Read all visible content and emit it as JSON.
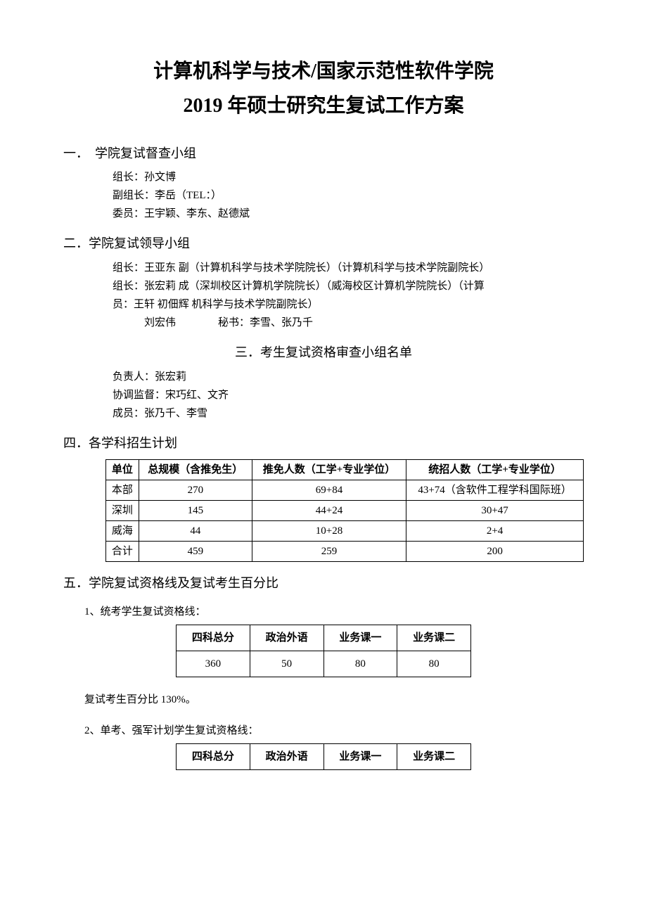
{
  "title_line1": "计算机科学与技术/国家示范性软件学院",
  "title_line2": "2019 年硕士研究生复试工作方案",
  "sec1": {
    "heading": "一．　学院复试督查小组",
    "l1": "组长：孙文博",
    "l2": "副组长：李岳（TEL：）",
    "l3": "委员：王宇颖、李东、赵德斌"
  },
  "sec2": {
    "heading": "二．学院复试领导小组",
    "l1": "组长：王亚东  副（计算机科学与技术学院院长）（计算机科学与技术学院副院长）",
    "l2": "组长：张宏莉  成（深圳校区计算机学院院长）（威海校区计算机学院院长）（计算",
    "l3": "员：王轩  初佃辉  机科学与技术学院副院长）",
    "l4": "　　　刘宏伟　　　　秘书：李雪、张乃千"
  },
  "sec3": {
    "heading": "三．考生复试资格审查小组名单",
    "l1": "负责人：张宏莉",
    "l2": "协调监督：宋巧红、文齐",
    "l3": "成员：张乃千、李雪"
  },
  "sec4": {
    "heading": "四．各学科招生计划",
    "columns": [
      "单位",
      "总规模（含推免生）",
      "推免人数（工学+专业学位）",
      "统招人数（工学+专业学位）"
    ],
    "rows": [
      [
        "本部",
        "270",
        "69+84",
        "43+74（含软件工程学科国际班）"
      ],
      [
        "深圳",
        "145",
        "44+24",
        "30+47"
      ],
      [
        "威海",
        "44",
        "10+28",
        "2+4"
      ],
      [
        "合计",
        "459",
        "259",
        "200"
      ]
    ]
  },
  "sec5": {
    "heading": "五．学院复试资格线及复试考生百分比",
    "sub1_label": "1、统考学生复试资格线：",
    "score_cols": [
      "四科总分",
      "政治外语",
      "业务课一",
      "业务课二"
    ],
    "score_row1": [
      "360",
      "50",
      "80",
      "80"
    ],
    "note": "复试考生百分比 130%。",
    "sub2_label": "2、单考、强军计划学生复试资格线："
  }
}
